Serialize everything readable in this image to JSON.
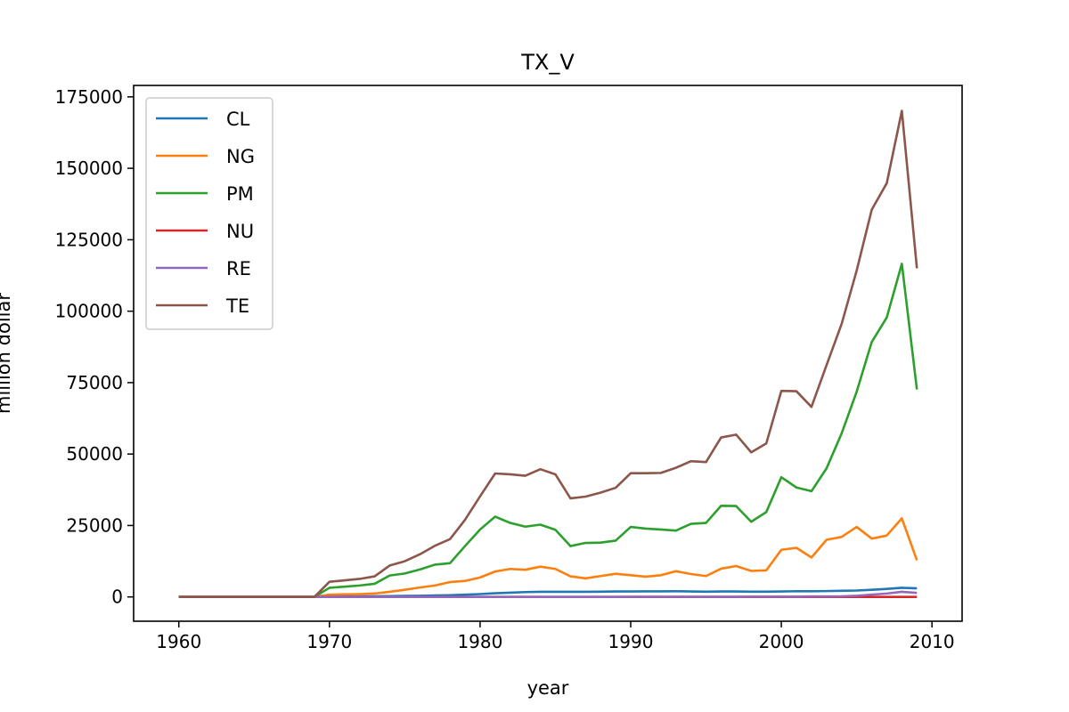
{
  "chart_data": {
    "type": "line",
    "title": "TX_V",
    "xlabel": "year",
    "ylabel": "million dollar",
    "xlim": [
      1957,
      2012
    ],
    "ylim": [
      -8500,
      179000
    ],
    "xticks": [
      1960,
      1970,
      1980,
      1990,
      2000,
      2010
    ],
    "yticks": [
      0,
      25000,
      50000,
      75000,
      100000,
      125000,
      150000,
      175000
    ],
    "grid": false,
    "legend_position": "top-left",
    "x": [
      1960,
      1961,
      1962,
      1963,
      1964,
      1965,
      1966,
      1967,
      1968,
      1969,
      1970,
      1971,
      1972,
      1973,
      1974,
      1975,
      1976,
      1977,
      1978,
      1979,
      1980,
      1981,
      1982,
      1983,
      1984,
      1985,
      1986,
      1987,
      1988,
      1989,
      1990,
      1991,
      1992,
      1993,
      1994,
      1995,
      1996,
      1997,
      1998,
      1999,
      2000,
      2001,
      2002,
      2003,
      2004,
      2005,
      2006,
      2007,
      2008,
      2009
    ],
    "series": [
      {
        "name": "CL",
        "color": "#1f77b4",
        "values": [
          0,
          0,
          0,
          0,
          0,
          0,
          0,
          0,
          0,
          0,
          100,
          150,
          200,
          250,
          300,
          350,
          400,
          500,
          600,
          800,
          1000,
          1300,
          1500,
          1700,
          1800,
          1800,
          1800,
          1800,
          1850,
          1900,
          1900,
          1950,
          1950,
          2000,
          1900,
          1850,
          1900,
          1900,
          1850,
          1850,
          1900,
          2000,
          2000,
          2050,
          2150,
          2250,
          2500,
          2800,
          3200,
          3000
        ]
      },
      {
        "name": "NG",
        "color": "#ff7f0e",
        "values": [
          0,
          0,
          0,
          0,
          0,
          0,
          0,
          0,
          0,
          0,
          800,
          900,
          1000,
          1200,
          1800,
          2500,
          3300,
          4000,
          5200,
          5600,
          6800,
          8900,
          9800,
          9500,
          10600,
          9800,
          7200,
          6500,
          7300,
          8100,
          7600,
          7100,
          7600,
          9000,
          8000,
          7300,
          9900,
          10800,
          9100,
          9300,
          16500,
          17200,
          13800,
          20000,
          21000,
          24500,
          20400,
          21500,
          27500,
          12800
        ]
      },
      {
        "name": "PM",
        "color": "#2ca02c",
        "values": [
          0,
          0,
          0,
          0,
          0,
          0,
          0,
          0,
          0,
          0,
          3200,
          3600,
          4000,
          4600,
          7500,
          8200,
          9600,
          11300,
          11800,
          17800,
          23600,
          28100,
          25900,
          24600,
          25300,
          23500,
          17800,
          18900,
          19000,
          19700,
          24500,
          23900,
          23600,
          23200,
          25600,
          25900,
          31900,
          31800,
          26300,
          29700,
          41900,
          38300,
          37000,
          45000,
          57200,
          71800,
          89200,
          97800,
          116600,
          72600
        ]
      },
      {
        "name": "NU",
        "color": "#d62728",
        "values": [
          0,
          0,
          0,
          0,
          0,
          0,
          0,
          0,
          0,
          0,
          0,
          0,
          0,
          0,
          0,
          0,
          0,
          0,
          0,
          0,
          0,
          0,
          0,
          0,
          0,
          0,
          0,
          0,
          0,
          0,
          0,
          0,
          0,
          0,
          0,
          0,
          0,
          0,
          0,
          0,
          0,
          0,
          0,
          0,
          0,
          0,
          0,
          0,
          0,
          0
        ]
      },
      {
        "name": "RE",
        "color": "#9467bd",
        "values": [
          0,
          0,
          0,
          0,
          0,
          0,
          0,
          0,
          0,
          0,
          0,
          0,
          0,
          0,
          0,
          0,
          0,
          0,
          0,
          0,
          0,
          0,
          0,
          0,
          0,
          0,
          0,
          0,
          0,
          0,
          50,
          50,
          50,
          50,
          50,
          50,
          50,
          50,
          100,
          100,
          100,
          100,
          150,
          150,
          200,
          400,
          800,
          1200,
          1800,
          1400
        ]
      },
      {
        "name": "TE",
        "color": "#8c564b",
        "values": [
          0,
          0,
          0,
          0,
          0,
          0,
          0,
          0,
          0,
          0,
          5300,
          5800,
          6300,
          7200,
          11000,
          12500,
          14900,
          17900,
          20200,
          27000,
          35200,
          43200,
          42900,
          42400,
          44700,
          42900,
          34500,
          35100,
          36500,
          38200,
          43300,
          43300,
          43400,
          45200,
          47500,
          47200,
          55800,
          56800,
          50600,
          53700,
          72100,
          72000,
          66500,
          81100,
          95500,
          114200,
          135500,
          144800,
          170100,
          115000
        ]
      }
    ]
  }
}
